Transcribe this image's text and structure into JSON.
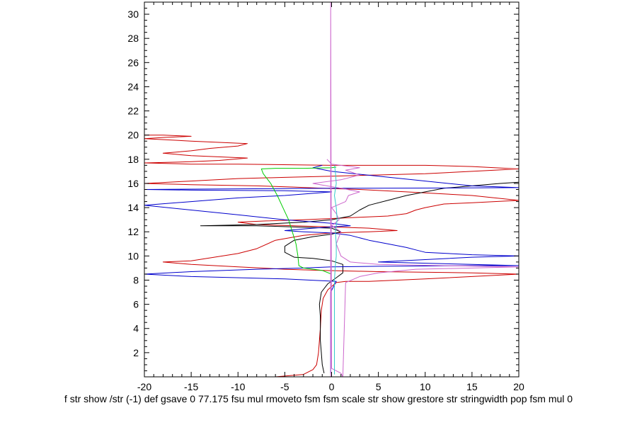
{
  "chart_data": {
    "type": "line",
    "xlim": [
      -20,
      20
    ],
    "ylim": [
      0,
      31
    ],
    "xticks": [
      -20,
      -15,
      -10,
      -5,
      0,
      5,
      10,
      15,
      20
    ],
    "yticks": [
      2,
      4,
      6,
      8,
      10,
      12,
      14,
      16,
      18,
      20,
      22,
      24,
      26,
      28,
      30
    ],
    "xlabel": "f str show /str (-1) def gsave 0 77.175 fsu mul rmoveto fsm fsm scale str show grestore str stringwidth pop fsm mul 0",
    "grid": false,
    "series": [
      {
        "color": "#cc0000",
        "points": [
          [
            -6,
            0
          ],
          [
            -3,
            0.2
          ],
          [
            -2,
            0.6
          ],
          [
            -1.6,
            1
          ],
          [
            -1.4,
            2
          ],
          [
            -1.2,
            4
          ],
          [
            -1.1,
            5.5
          ],
          [
            -0.9,
            6.5
          ],
          [
            -0.4,
            7.2
          ],
          [
            0.5,
            7.8
          ],
          [
            1.5,
            7.9
          ],
          [
            4,
            7.9
          ],
          [
            10,
            8.1
          ],
          [
            15,
            8.3
          ],
          [
            20,
            8.5
          ],
          [
            15,
            8.6
          ],
          [
            5,
            8.7
          ],
          [
            -1,
            8.8
          ],
          [
            -5,
            8.9
          ],
          [
            -10,
            9.1
          ],
          [
            -15,
            9.3
          ],
          [
            -18,
            9.5
          ],
          [
            -15,
            9.6
          ],
          [
            -10,
            10.2
          ],
          [
            -8,
            10.6
          ],
          [
            -6,
            11.3
          ],
          [
            -3,
            11.7
          ],
          [
            0,
            11.9
          ],
          [
            4,
            12.0
          ],
          [
            7,
            12.1
          ],
          [
            4,
            12.3
          ],
          [
            0,
            12.4
          ],
          [
            -4,
            12.5
          ],
          [
            -8,
            12.6
          ],
          [
            -10,
            12.8
          ],
          [
            -7,
            12.9
          ],
          [
            -3,
            13.0
          ],
          [
            0,
            13.1
          ],
          [
            3,
            13.2
          ],
          [
            6,
            13.3
          ],
          [
            8,
            13.5
          ],
          [
            9,
            13.8
          ],
          [
            10,
            14.0
          ],
          [
            12,
            14.3
          ],
          [
            15,
            14.4
          ],
          [
            20,
            14.6
          ],
          [
            15,
            15.0
          ],
          [
            8,
            15.3
          ],
          [
            3,
            15.5
          ],
          [
            -1,
            15.6
          ],
          [
            -4,
            15.7
          ],
          [
            -8,
            15.8
          ],
          [
            -15,
            15.9
          ],
          [
            -20,
            16.0
          ],
          [
            -15,
            16.2
          ],
          [
            -10,
            16.4
          ],
          [
            -5,
            16.5
          ],
          [
            0,
            16.6
          ],
          [
            5,
            16.7
          ],
          [
            10,
            16.8
          ],
          [
            15,
            17.0
          ],
          [
            20,
            17.2
          ],
          [
            15,
            17.4
          ],
          [
            10,
            17.5
          ],
          [
            0,
            17.5
          ],
          [
            -10,
            17.6
          ],
          [
            -15,
            17.6
          ],
          [
            -20,
            17.7
          ],
          [
            -15,
            17.8
          ],
          [
            -12,
            17.9
          ],
          [
            -9,
            18.1
          ],
          [
            -15,
            18.3
          ],
          [
            -18,
            18.5
          ],
          [
            -15,
            18.7
          ],
          [
            -13,
            18.9
          ],
          [
            -10,
            19.1
          ],
          [
            -9,
            19.3
          ],
          [
            -15,
            19.5
          ],
          [
            -20,
            19.7
          ],
          [
            -18,
            19.8
          ],
          [
            -15,
            19.9
          ],
          [
            -18,
            20.0
          ],
          [
            -20,
            20.0
          ]
        ]
      },
      {
        "color": "#000000",
        "points": [
          [
            -0.8,
            0.3
          ],
          [
            -1.0,
            1
          ],
          [
            -1.1,
            2
          ],
          [
            -1.2,
            3
          ],
          [
            -1.2,
            4
          ],
          [
            -1.2,
            5
          ],
          [
            -1.3,
            6
          ],
          [
            -1.1,
            7
          ],
          [
            -0.4,
            7.7
          ],
          [
            0.5,
            8.2
          ],
          [
            1.2,
            8.6
          ],
          [
            1.2,
            9.3
          ],
          [
            0,
            9.6
          ],
          [
            -2,
            9.8
          ],
          [
            -4,
            9.9
          ],
          [
            -5,
            10.3
          ],
          [
            -5,
            10.8
          ],
          [
            -4,
            11.3
          ],
          [
            -2,
            11.6
          ],
          [
            0,
            11.8
          ],
          [
            1,
            12.0
          ],
          [
            0,
            12.3
          ],
          [
            -4,
            12.4
          ],
          [
            -8,
            12.5
          ],
          [
            -14,
            12.5
          ],
          [
            -8,
            12.6
          ],
          [
            -3,
            12.8
          ],
          [
            0,
            13.0
          ],
          [
            2,
            13.3
          ],
          [
            3,
            13.8
          ],
          [
            4,
            14.2
          ],
          [
            6,
            14.6
          ],
          [
            8,
            15.0
          ],
          [
            10,
            15.3
          ],
          [
            12,
            15.6
          ],
          [
            15,
            15.8
          ],
          [
            18,
            16.0
          ],
          [
            20,
            16.1
          ]
        ]
      },
      {
        "color": "#0000cc",
        "points": [
          [
            -0.1,
            0.3
          ],
          [
            -0.1,
            3
          ],
          [
            -0.1,
            5
          ],
          [
            -0.1,
            7
          ],
          [
            0.5,
            7.9
          ],
          [
            -5,
            8.1
          ],
          [
            -15,
            8.3
          ],
          [
            -20,
            8.5
          ],
          [
            -15,
            8.7
          ],
          [
            -8,
            8.9
          ],
          [
            -3,
            9.0
          ],
          [
            0,
            9.1
          ],
          [
            5,
            9.15
          ],
          [
            15,
            9.2
          ],
          [
            20,
            9.2
          ],
          [
            15,
            9.3
          ],
          [
            5,
            9.5
          ],
          [
            10,
            9.7
          ],
          [
            15,
            9.9
          ],
          [
            20,
            10.0
          ],
          [
            15,
            10.1
          ],
          [
            10,
            10.3
          ],
          [
            9,
            10.5
          ],
          [
            8,
            10.7
          ],
          [
            6,
            11.0
          ],
          [
            4,
            11.3
          ],
          [
            2,
            11.7
          ],
          [
            0,
            11.9
          ],
          [
            -3,
            12.0
          ],
          [
            -5,
            12.1
          ],
          [
            -2,
            12.3
          ],
          [
            0,
            12.4
          ],
          [
            2,
            12.5
          ],
          [
            0,
            12.7
          ],
          [
            -5,
            13.0
          ],
          [
            -10,
            13.4
          ],
          [
            -15,
            13.8
          ],
          [
            -20,
            14.2
          ],
          [
            -15,
            14.5
          ],
          [
            -10,
            14.8
          ],
          [
            -5,
            15.0
          ],
          [
            0,
            15.3
          ],
          [
            -5,
            15.4
          ],
          [
            -15,
            15.45
          ],
          [
            -20,
            15.5
          ],
          [
            -10,
            15.55
          ],
          [
            0,
            15.6
          ],
          [
            10,
            15.62
          ],
          [
            20,
            15.65
          ],
          [
            15,
            15.8
          ],
          [
            10,
            16.2
          ],
          [
            5,
            16.6
          ],
          [
            0,
            17.0
          ],
          [
            -2,
            17.3
          ],
          [
            -1,
            17.5
          ]
        ]
      },
      {
        "color": "#00cc00",
        "points": [
          [
            0,
            8.5
          ],
          [
            -1,
            8.8
          ],
          [
            -3,
            9.0
          ],
          [
            -3.5,
            9.2
          ],
          [
            -3.6,
            10
          ],
          [
            -3.8,
            11
          ],
          [
            -4.2,
            12
          ],
          [
            -4.6,
            13
          ],
          [
            -5.2,
            14
          ],
          [
            -5.8,
            15
          ],
          [
            -6.5,
            16
          ],
          [
            -7.3,
            16.8
          ],
          [
            -7.5,
            17.2
          ],
          [
            -6,
            17.25
          ],
          [
            -3,
            17.25
          ],
          [
            0,
            17.3
          ],
          [
            0.5,
            17.35
          ]
        ]
      },
      {
        "color": "#cc66cc",
        "points": [
          [
            -0.1,
            0
          ],
          [
            -0.1,
            31
          ],
          [
            0,
            0.7
          ],
          [
            1,
            0.3
          ],
          [
            1.2,
            0
          ],
          [
            1.5,
            7.8
          ],
          [
            3,
            8.3
          ],
          [
            5,
            8.6
          ],
          [
            9,
            8.9
          ],
          [
            15,
            9.0
          ],
          [
            20,
            9.1
          ],
          [
            12,
            9.2
          ],
          [
            5,
            9.3
          ],
          [
            2,
            9.5
          ],
          [
            1,
            10
          ],
          [
            0.5,
            11
          ],
          [
            1,
            12
          ],
          [
            0,
            12.5
          ],
          [
            0.8,
            13.0
          ],
          [
            0.5,
            13.5
          ],
          [
            0,
            14
          ],
          [
            1.5,
            14.5
          ],
          [
            1.8,
            15.0
          ],
          [
            3,
            15.3
          ],
          [
            1,
            15.6
          ],
          [
            -2,
            16.0
          ],
          [
            1,
            16.3
          ],
          [
            3,
            16.7
          ],
          [
            1.5,
            17.1
          ],
          [
            3,
            17.3
          ],
          [
            0,
            17.6
          ],
          [
            -0.5,
            18.0
          ]
        ]
      },
      {
        "color": "#33cccc",
        "points": [
          [
            0.3,
            0.2
          ],
          [
            0.3,
            2
          ],
          [
            0.3,
            4
          ],
          [
            0.3,
            6
          ],
          [
            0.3,
            8
          ],
          [
            0.4,
            9.2
          ],
          [
            0.5,
            10
          ],
          [
            0.5,
            11
          ],
          [
            0.4,
            12
          ],
          [
            0.6,
            13
          ],
          [
            0.5,
            14
          ],
          [
            0.3,
            15
          ],
          [
            0.5,
            16
          ],
          [
            0.4,
            17
          ],
          [
            0.3,
            17.5
          ]
        ]
      }
    ]
  }
}
